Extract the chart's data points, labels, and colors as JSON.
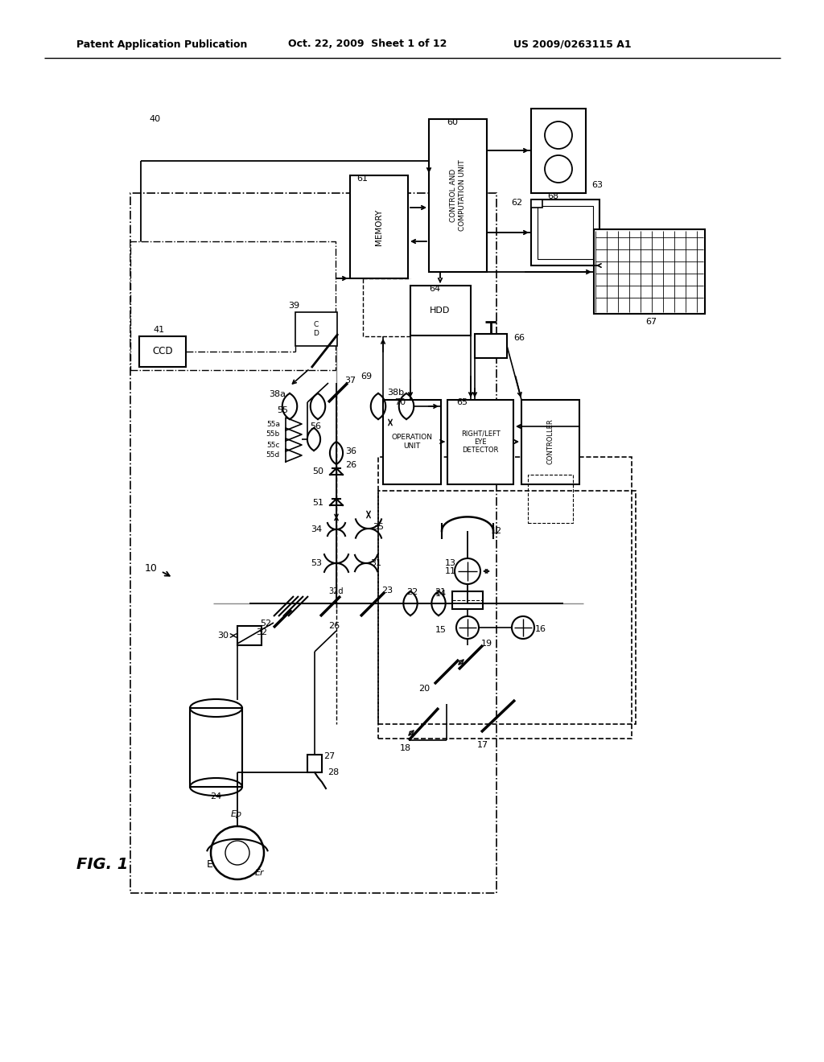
{
  "header_left": "Patent Application Publication",
  "header_mid": "Oct. 22, 2009  Sheet 1 of 12",
  "header_right": "US 2009/0263115 A1",
  "fig_label": "FIG. 1",
  "bg": "#ffffff"
}
